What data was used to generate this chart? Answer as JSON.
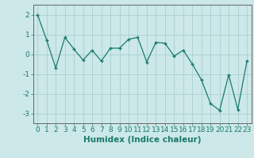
{
  "x": [
    0,
    1,
    2,
    3,
    4,
    5,
    6,
    7,
    8,
    9,
    10,
    11,
    12,
    13,
    14,
    15,
    16,
    17,
    18,
    19,
    20,
    21,
    22,
    23
  ],
  "y": [
    2.0,
    0.7,
    -0.7,
    0.85,
    0.25,
    -0.3,
    0.2,
    -0.35,
    0.3,
    0.3,
    0.75,
    0.85,
    -0.4,
    0.6,
    0.55,
    -0.1,
    0.2,
    -0.5,
    -1.3,
    -2.5,
    -2.85,
    -1.05,
    -2.8,
    -0.35
  ],
  "line_color": "#1a7a6e",
  "marker": "+",
  "marker_color": "#1a7a6e",
  "bg_color": "#cce8e8",
  "grid_color": "#aacfcf",
  "xlabel": "Humidex (Indice chaleur)",
  "xlim": [
    -0.5,
    23.5
  ],
  "ylim": [
    -3.5,
    2.5
  ],
  "yticks": [
    -3,
    -2,
    -1,
    0,
    1,
    2
  ],
  "xticks": [
    0,
    1,
    2,
    3,
    4,
    5,
    6,
    7,
    8,
    9,
    10,
    11,
    12,
    13,
    14,
    15,
    16,
    17,
    18,
    19,
    20,
    21,
    22,
    23
  ],
  "tick_color": "#1a7a6e",
  "label_color": "#1a7a6e",
  "axis_color": "#666666",
  "font_size": 6.5,
  "xlabel_fontsize": 7.5
}
